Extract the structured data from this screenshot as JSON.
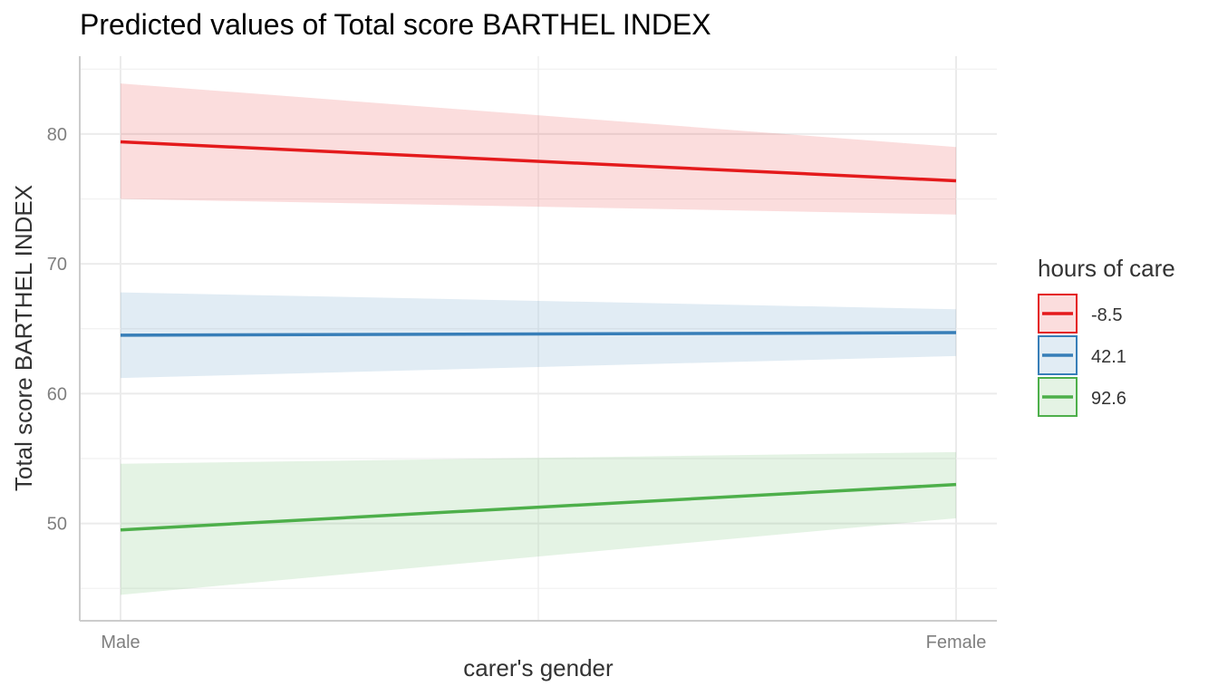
{
  "chart_data": {
    "type": "line",
    "title": "Predicted values of Total score BARTHEL INDEX",
    "xlabel": "carer's gender",
    "ylabel": "Total score BARTHEL INDEX",
    "categories": [
      "Male",
      "Female"
    ],
    "ylim": [
      42.5,
      86
    ],
    "yticks": [
      50,
      60,
      70,
      80
    ],
    "grid": true,
    "legend": {
      "title": "hours of care",
      "position": "right"
    },
    "series": [
      {
        "name": "-8.5",
        "color": "#e41a1c",
        "values": [
          79.4,
          76.4
        ],
        "lower": [
          75.0,
          73.8
        ],
        "upper": [
          83.9,
          79.0
        ]
      },
      {
        "name": "42.1",
        "color": "#377eb8",
        "values": [
          64.5,
          64.7
        ],
        "lower": [
          61.2,
          62.9
        ],
        "upper": [
          67.8,
          66.5
        ]
      },
      {
        "name": "92.6",
        "color": "#4daf4a",
        "values": [
          49.5,
          53.0
        ],
        "lower": [
          44.5,
          50.4
        ],
        "upper": [
          54.6,
          55.5
        ]
      }
    ]
  }
}
